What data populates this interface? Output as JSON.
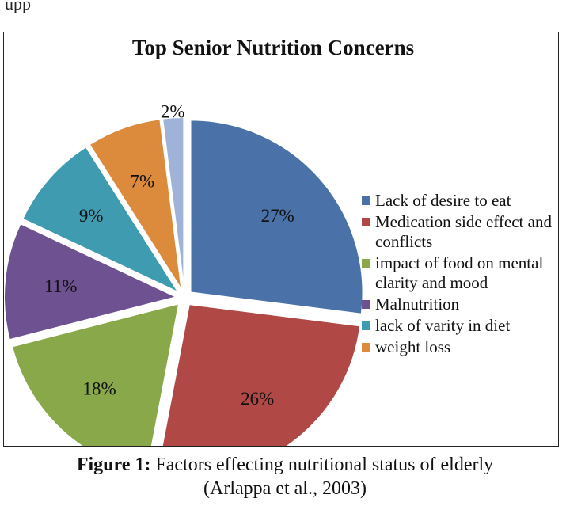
{
  "page": {
    "top_fragment": "upp",
    "caption_label": "Figure 1:",
    "caption_text": " Factors effecting nutritional status of elderly",
    "caption_source": "(Arlappa et al., 2003)"
  },
  "chart_data": {
    "type": "pie",
    "title": "Top Senior Nutrition Concerns",
    "start_angle_deg": 0,
    "direction": "clockwise",
    "exploded": true,
    "legend_position": "right",
    "slices": [
      {
        "label": "Lack of desire to eat",
        "value": 27,
        "value_label": "27%",
        "color": "#4a72a8"
      },
      {
        "label": "Medication side effect and conflicts",
        "value": 26,
        "value_label": "26%",
        "color": "#b04845"
      },
      {
        "label": "impact of food on mental clarity and mood",
        "value": 18,
        "value_label": "18%",
        "color": "#89a84a"
      },
      {
        "label": "Malnutrition",
        "value": 11,
        "value_label": "11%",
        "color": "#6e5190"
      },
      {
        "label": "lack of varity in diet",
        "value": 9,
        "value_label": "9%",
        "color": "#3f9bb0"
      },
      {
        "label": "weight loss",
        "value": 7,
        "value_label": "7%",
        "color": "#dc8a3c"
      },
      {
        "label": "",
        "value": 2,
        "value_label": "2%",
        "color": "#9fb3d8"
      }
    ]
  }
}
